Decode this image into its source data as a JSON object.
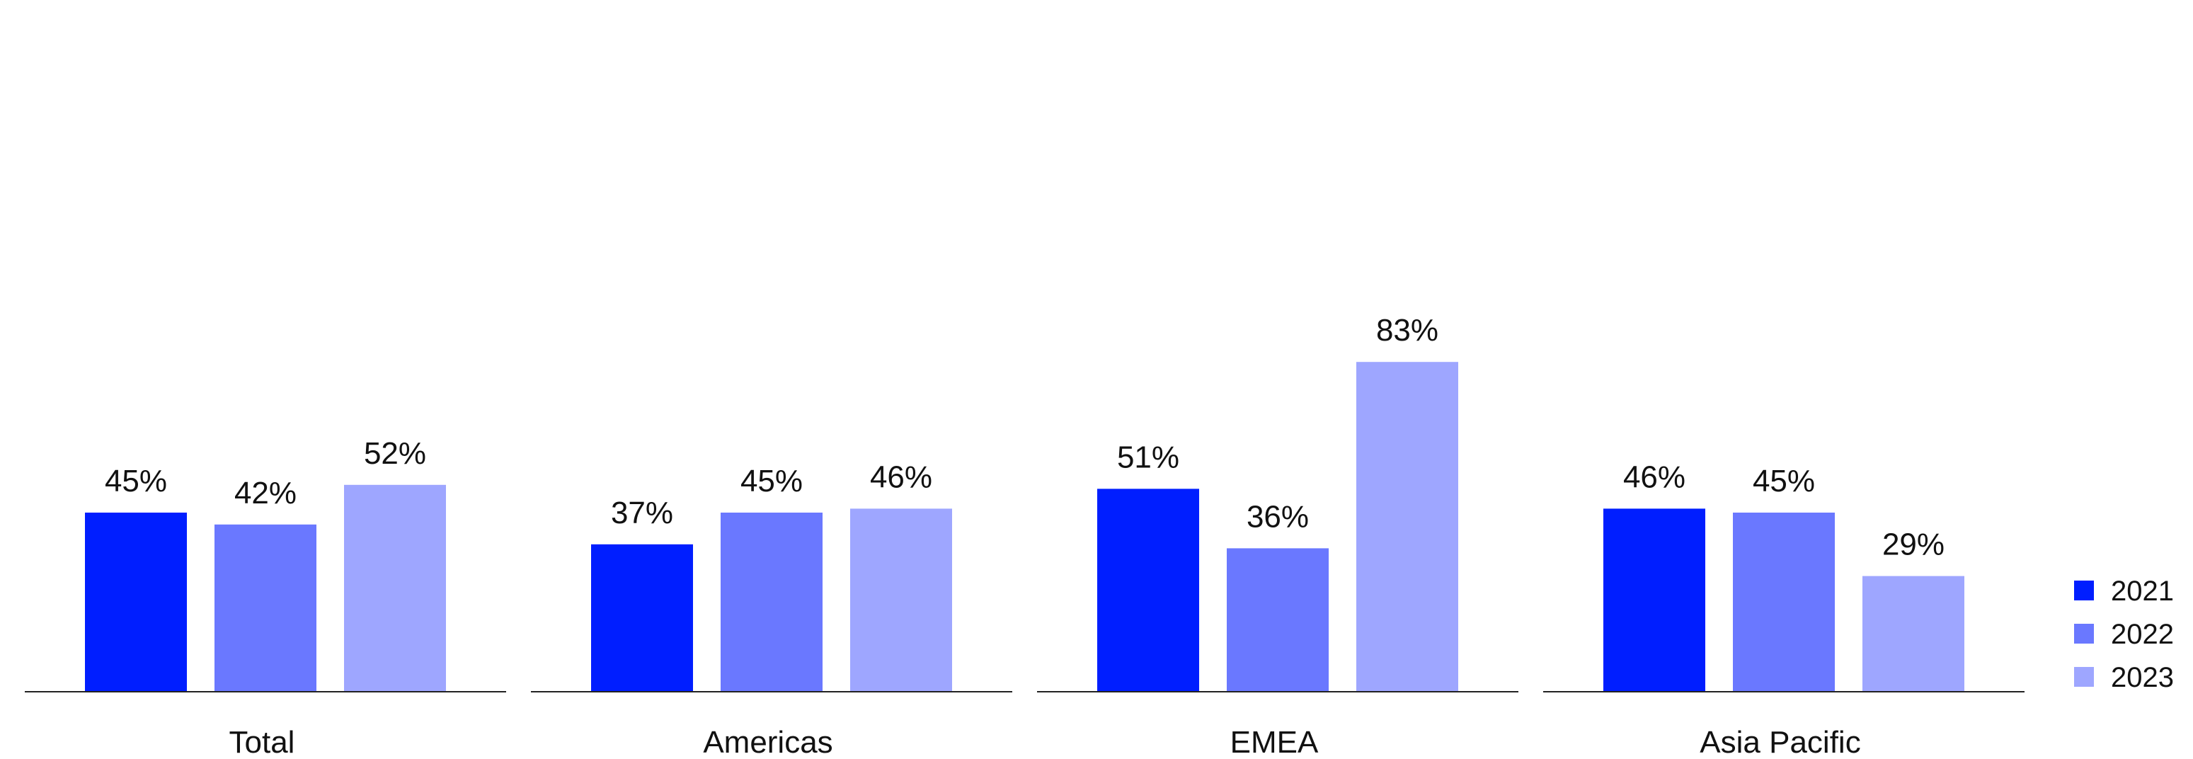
{
  "chart_data": {
    "type": "bar",
    "categories": [
      "Total",
      "Americas",
      "EMEA",
      "Asia Pacific"
    ],
    "series": [
      {
        "name": "2021",
        "color": "#001eff",
        "values": [
          45,
          37,
          51,
          46
        ],
        "labels": [
          "45%",
          "37%",
          "51%",
          "46%"
        ]
      },
      {
        "name": "2022",
        "color": "#6a78ff",
        "values": [
          42,
          45,
          36,
          45
        ],
        "labels": [
          "42%",
          "45%",
          "36%",
          "45%"
        ]
      },
      {
        "name": "2023",
        "color": "#9ea6ff",
        "values": [
          52,
          46,
          83,
          29
        ],
        "labels": [
          "52%",
          "46%",
          "83%",
          "29%"
        ]
      }
    ],
    "title": "",
    "xlabel": "",
    "ylabel": "",
    "ylim": [
      0,
      90
    ],
    "grid": false,
    "legend": "bottom-right",
    "units": "%"
  }
}
